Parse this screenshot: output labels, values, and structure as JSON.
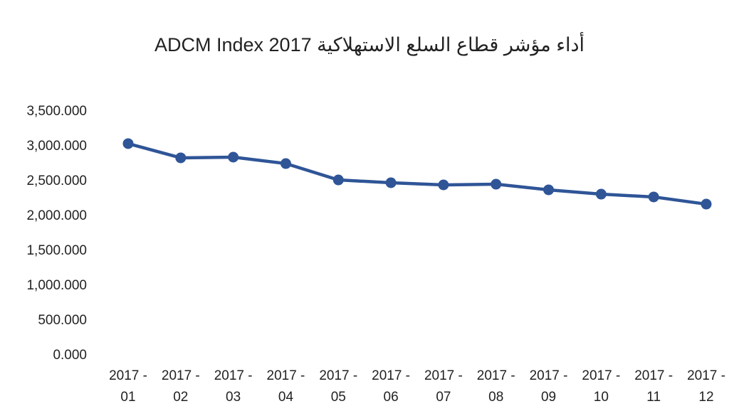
{
  "chart_data": {
    "type": "line",
    "title": "أداء مؤشر قطاع السلع الاستهلاكية ADCM Index 2017",
    "categories": [
      "2017 - 01",
      "2017 - 02",
      "2017 - 03",
      "2017 - 04",
      "2017 - 05",
      "2017 - 06",
      "2017 - 07",
      "2017 - 08",
      "2017 - 09",
      "2017 - 10",
      "2017 - 11",
      "2017 - 12"
    ],
    "series": [
      {
        "name": "ADCM Index",
        "color": "#2f5597",
        "values": [
          3041,
          2837,
          2847,
          2755,
          2520,
          2480,
          2449,
          2459,
          2378,
          2316,
          2276,
          2173
        ]
      }
    ],
    "ylim": [
      0,
      3500
    ],
    "yticks": [
      {
        "value": 0,
        "label": "0.000"
      },
      {
        "value": 500,
        "label": "500.000"
      },
      {
        "value": 1000,
        "label": "1,000.000"
      },
      {
        "value": 1500,
        "label": "1,500.000"
      },
      {
        "value": 2000,
        "label": "2,000.000"
      },
      {
        "value": 2500,
        "label": "2,500.000"
      },
      {
        "value": 3000,
        "label": "3,000.000"
      },
      {
        "value": 3500,
        "label": "3,500.000"
      }
    ],
    "grid": false
  }
}
